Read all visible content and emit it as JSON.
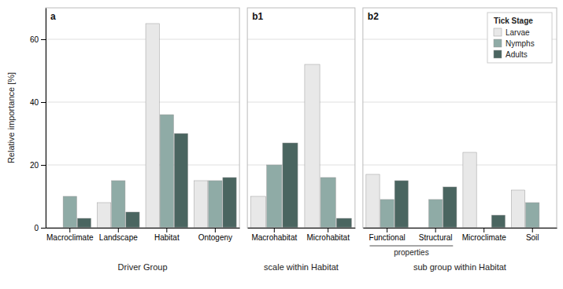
{
  "chart_data": [
    {
      "type": "bar",
      "title": "a",
      "xlabel": "Driver Group",
      "ylabel": "Relative importance [%]",
      "categories": [
        "Macroclimate",
        "Landscape",
        "Habitat",
        "Ontogeny"
      ],
      "series": [
        {
          "name": "Larvae",
          "color": "#e8e8e8",
          "values": [
            0,
            8,
            65,
            15
          ]
        },
        {
          "name": "Nymphs",
          "color": "#8faba6",
          "values": [
            10,
            15,
            36,
            15
          ]
        },
        {
          "name": "Adults",
          "color": "#4a6560",
          "values": [
            3,
            5,
            30,
            16
          ]
        }
      ],
      "ylim": [
        0,
        70
      ],
      "yticks": [
        0,
        20,
        40,
        60
      ],
      "grid": true
    },
    {
      "type": "bar",
      "title": "b1",
      "xlabel": "scale within Habitat",
      "categories": [
        "Macrohabitat",
        "Microhabitat"
      ],
      "series": [
        {
          "name": "Larvae",
          "color": "#e8e8e8",
          "values": [
            10,
            52
          ]
        },
        {
          "name": "Nymphs",
          "color": "#8faba6",
          "values": [
            20,
            16
          ]
        },
        {
          "name": "Adults",
          "color": "#4a6560",
          "values": [
            27,
            3
          ]
        }
      ],
      "ylim": [
        0,
        70
      ],
      "yticks": [
        0,
        20,
        40,
        60
      ],
      "grid": true,
      "tick_labels": "x"
    },
    {
      "type": "bar",
      "title": "b2",
      "xlabel": "sub group within Habitat",
      "categories": [
        "Functional",
        "Structural",
        "Microclimate",
        "Soil"
      ],
      "series": [
        {
          "name": "Larvae",
          "color": "#e8e8e8",
          "values": [
            17,
            0,
            24,
            12
          ]
        },
        {
          "name": "Nymphs",
          "color": "#8faba6",
          "values": [
            9,
            9,
            0,
            8
          ]
        },
        {
          "name": "Adults",
          "color": "#4a6560",
          "values": [
            15,
            13,
            4,
            0
          ]
        }
      ],
      "ylim": [
        0,
        70
      ],
      "yticks": [
        0,
        20,
        40,
        60
      ],
      "grid": true,
      "tick_labels": "x",
      "legend": "upper right",
      "legend_title": "Tick Stage",
      "annotations": [
        {
          "text": "properties"
        }
      ]
    }
  ]
}
